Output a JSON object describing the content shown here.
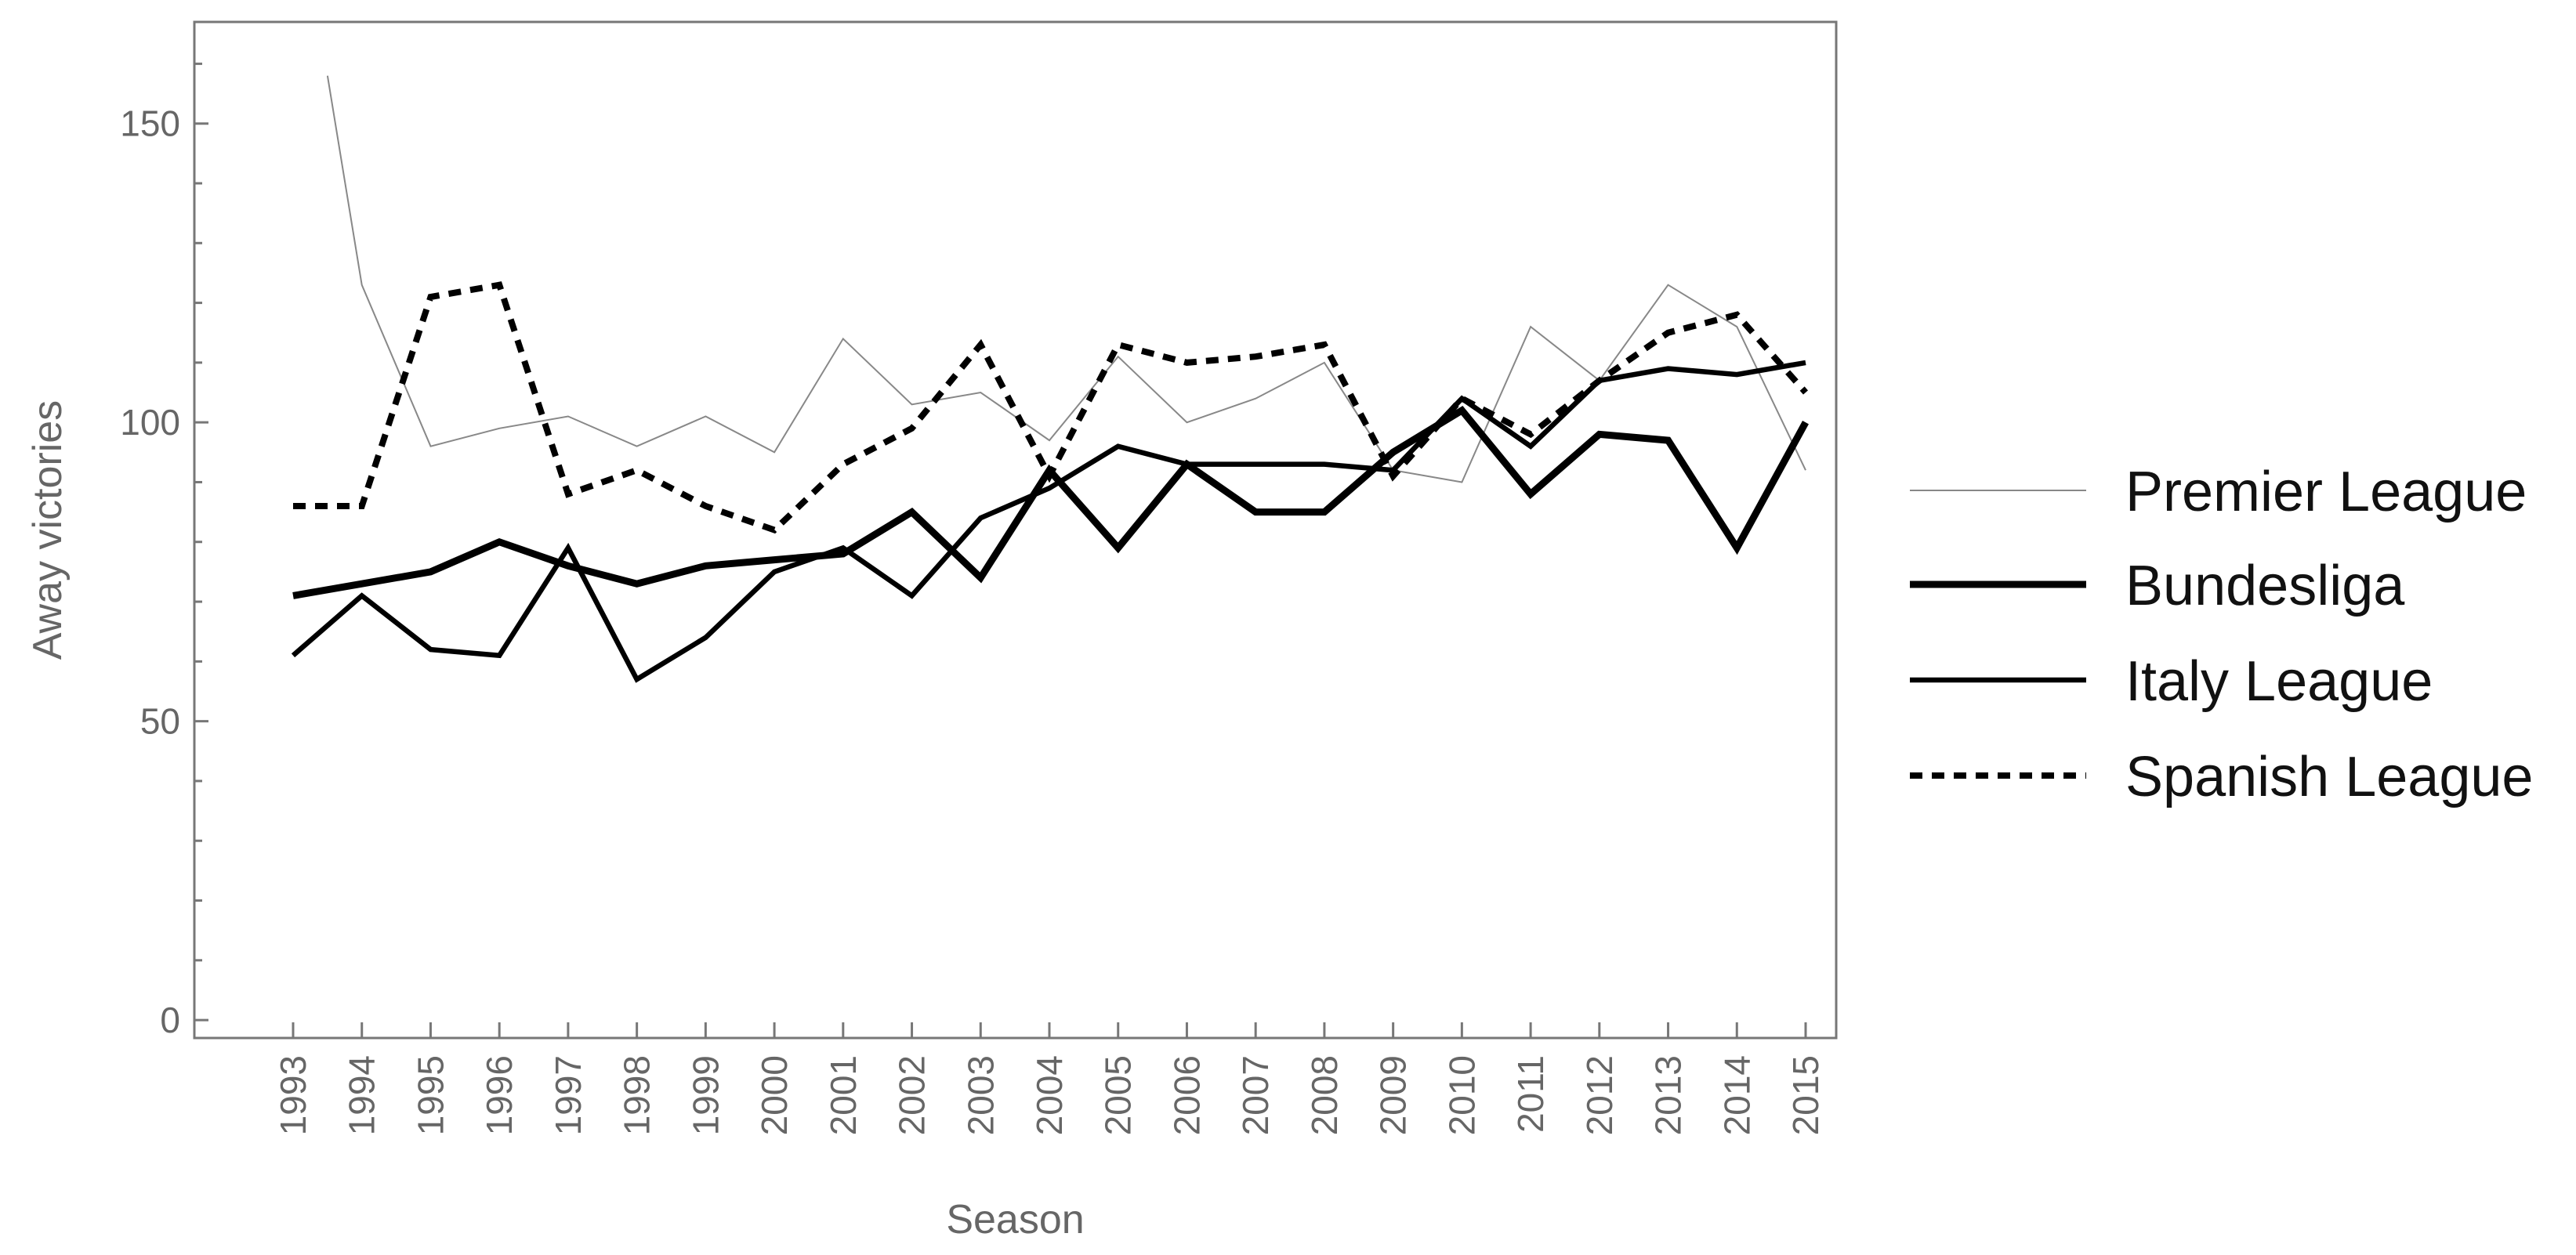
{
  "chart_data": {
    "type": "line",
    "title": "",
    "xlabel": "Season",
    "ylabel": "Away victories",
    "ylim": [
      -3,
      167
    ],
    "yticks": [
      0,
      50,
      100,
      150
    ],
    "x": [
      "1993",
      "1994",
      "1995",
      "1996",
      "1997",
      "1998",
      "1999",
      "2000",
      "2001",
      "2002",
      "2003",
      "2004",
      "2005",
      "2006",
      "2007",
      "2008",
      "2009",
      "2010",
      "2011",
      "2012",
      "2013",
      "2014",
      "2015"
    ],
    "grid": false,
    "legend_position": "right",
    "series": [
      {
        "name": "Premier League",
        "style": "thin",
        "color": "#888888",
        "points": [
          [
            1993.5,
            158
          ],
          [
            1994,
            123
          ],
          [
            1995,
            96
          ],
          [
            1996,
            99
          ],
          [
            1997,
            101
          ],
          [
            1998,
            96
          ],
          [
            1999,
            101
          ],
          [
            2000,
            95
          ],
          [
            2001,
            114
          ],
          [
            2002,
            103
          ],
          [
            2003,
            105
          ],
          [
            2004,
            97
          ],
          [
            2005,
            111
          ],
          [
            2006,
            100
          ],
          [
            2007,
            104
          ],
          [
            2008,
            110
          ],
          [
            2009,
            92
          ],
          [
            2010,
            90
          ],
          [
            2011,
            116
          ],
          [
            2012,
            107
          ],
          [
            2013,
            123
          ],
          [
            2014,
            116
          ],
          [
            2015,
            92
          ]
        ]
      },
      {
        "name": "Bundesliga",
        "style": "thick",
        "color": "#000000",
        "points": [
          [
            1993,
            71
          ],
          [
            1994,
            73
          ],
          [
            1995,
            75
          ],
          [
            1996,
            80
          ],
          [
            1997,
            76
          ],
          [
            1998,
            73
          ],
          [
            1999,
            76
          ],
          [
            2000,
            77
          ],
          [
            2001,
            78
          ],
          [
            2002,
            85
          ],
          [
            2003,
            74
          ],
          [
            2004,
            92
          ],
          [
            2005,
            79
          ],
          [
            2006,
            93
          ],
          [
            2007,
            85
          ],
          [
            2008,
            85
          ],
          [
            2009,
            95
          ],
          [
            2010,
            102
          ],
          [
            2011,
            88
          ],
          [
            2012,
            98
          ],
          [
            2013,
            97
          ],
          [
            2014,
            79
          ],
          [
            2015,
            100
          ]
        ]
      },
      {
        "name": "Italy League",
        "style": "medium",
        "color": "#000000",
        "points": [
          [
            1993,
            61
          ],
          [
            1994,
            71
          ],
          [
            1995,
            62
          ],
          [
            1996,
            61
          ],
          [
            1997,
            79
          ],
          [
            1998,
            57
          ],
          [
            1999,
            64
          ],
          [
            2000,
            75
          ],
          [
            2001,
            79
          ],
          [
            2002,
            71
          ],
          [
            2003,
            84
          ],
          [
            2004,
            89
          ],
          [
            2005,
            96
          ],
          [
            2006,
            93
          ],
          [
            2007,
            93
          ],
          [
            2008,
            93
          ],
          [
            2009,
            92
          ],
          [
            2010,
            104
          ],
          [
            2011,
            96
          ],
          [
            2012,
            107
          ],
          [
            2013,
            109
          ],
          [
            2014,
            108
          ],
          [
            2015,
            110
          ]
        ]
      },
      {
        "name": "Spanish League",
        "style": "dashed",
        "color": "#000000",
        "points": [
          [
            1993,
            86
          ],
          [
            1994,
            86
          ],
          [
            1995,
            121
          ],
          [
            1996,
            123
          ],
          [
            1997,
            88
          ],
          [
            1998,
            92
          ],
          [
            1999,
            86
          ],
          [
            2000,
            82
          ],
          [
            2001,
            93
          ],
          [
            2002,
            99
          ],
          [
            2003,
            113
          ],
          [
            2004,
            91
          ],
          [
            2005,
            113
          ],
          [
            2006,
            110
          ],
          [
            2007,
            111
          ],
          [
            2008,
            113
          ],
          [
            2009,
            91
          ],
          [
            2010,
            104
          ],
          [
            2011,
            98
          ],
          [
            2012,
            107
          ],
          [
            2013,
            115
          ],
          [
            2014,
            118
          ],
          [
            2015,
            105
          ]
        ]
      }
    ]
  }
}
